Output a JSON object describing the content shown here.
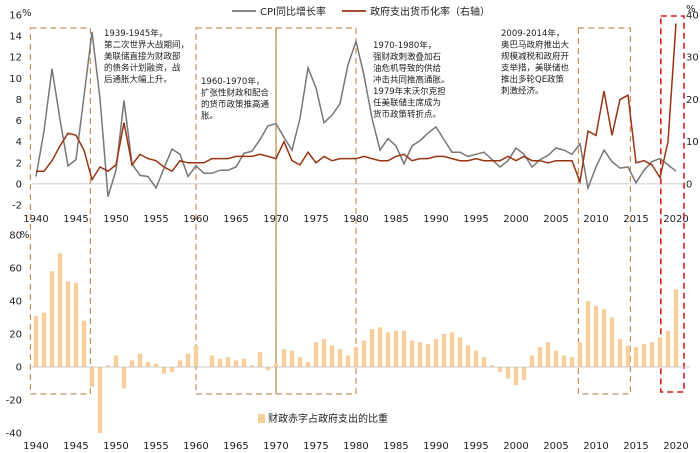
{
  "colors": {
    "cpi_line": "#777777",
    "ratio_line": "#9a3412",
    "bars": "#f8cf9a",
    "box_orange": "#c8925a",
    "box_red": "#d81e1e",
    "divider": "#c9a46a"
  },
  "chart_data": [
    {
      "type": "line",
      "x_start": 1940,
      "x_end": 2021,
      "x_ticks": [
        1940,
        1945,
        1950,
        1955,
        1960,
        1965,
        1970,
        1975,
        1980,
        1985,
        1990,
        1995,
        2000,
        2005,
        2010,
        2015,
        2020
      ],
      "x_tick_labels": [
        "1940",
        "1945",
        "1950",
        "1955",
        "1960",
        "1965",
        "1970",
        "1975",
        "1980",
        "1985",
        "1990",
        "1995",
        "2000",
        "2005",
        "2010",
        "2015",
        "2020"
      ],
      "y_left": {
        "unit": "%",
        "min": -2,
        "max": 16,
        "ticks": [
          -2,
          0,
          2,
          4,
          6,
          8,
          10,
          12,
          14,
          16
        ],
        "tick_labels": [
          "-2",
          "0",
          "2",
          "4",
          "6",
          "8",
          "10",
          "12",
          "14",
          "16"
        ]
      },
      "y_right": {
        "unit": "%",
        "min": -5,
        "max": 40,
        "ticks": [
          0,
          10,
          20,
          30,
          40
        ],
        "tick_labels": [
          "0",
          "10",
          "20",
          "30",
          "40"
        ]
      },
      "legend_position": "top-center",
      "series": [
        {
          "name": "CPI同比增长率",
          "axis": "left",
          "years": [
            1940,
            1941,
            1942,
            1943,
            1944,
            1945,
            1946,
            1947,
            1948,
            1949,
            1950,
            1951,
            1952,
            1953,
            1954,
            1955,
            1956,
            1957,
            1958,
            1959,
            1960,
            1961,
            1962,
            1963,
            1964,
            1965,
            1966,
            1967,
            1968,
            1969,
            1970,
            1971,
            1972,
            1973,
            1974,
            1975,
            1976,
            1977,
            1978,
            1979,
            1980,
            1981,
            1982,
            1983,
            1984,
            1985,
            1986,
            1987,
            1988,
            1989,
            1990,
            1991,
            1992,
            1993,
            1994,
            1995,
            1996,
            1997,
            1998,
            1999,
            2000,
            2001,
            2002,
            2003,
            2004,
            2005,
            2006,
            2007,
            2008,
            2009,
            2010,
            2011,
            2012,
            2013,
            2014,
            2015,
            2016,
            2017,
            2018,
            2019,
            2020
          ],
          "values": [
            0.7,
            5.0,
            10.9,
            6.1,
            1.7,
            2.3,
            8.3,
            14.4,
            8.1,
            -1.2,
            1.3,
            7.9,
            1.9,
            0.8,
            0.7,
            -0.4,
            1.5,
            3.3,
            2.8,
            0.7,
            1.7,
            1.0,
            1.0,
            1.3,
            1.3,
            1.6,
            2.9,
            3.1,
            4.2,
            5.5,
            5.7,
            4.4,
            3.2,
            6.2,
            11.0,
            9.1,
            5.8,
            6.5,
            7.6,
            11.3,
            13.5,
            10.3,
            6.2,
            3.2,
            4.3,
            3.6,
            1.9,
            3.6,
            4.1,
            4.8,
            5.4,
            4.2,
            3.0,
            3.0,
            2.6,
            2.8,
            3.0,
            2.3,
            1.6,
            2.2,
            3.4,
            2.8,
            1.6,
            2.3,
            2.7,
            3.4,
            3.2,
            2.8,
            3.8,
            -0.4,
            1.6,
            3.2,
            2.1,
            1.5,
            1.6,
            0.1,
            1.3,
            2.1,
            2.4,
            1.8,
            1.2
          ]
        },
        {
          "name": "政府支出货币化率（右轴）",
          "axis": "right",
          "years": [
            1940,
            1941,
            1942,
            1943,
            1944,
            1945,
            1946,
            1947,
            1948,
            1949,
            1950,
            1951,
            1952,
            1953,
            1954,
            1955,
            1956,
            1957,
            1958,
            1959,
            1960,
            1961,
            1962,
            1963,
            1964,
            1965,
            1966,
            1967,
            1968,
            1969,
            1970,
            1971,
            1972,
            1973,
            1974,
            1975,
            1976,
            1977,
            1978,
            1979,
            1980,
            1981,
            1982,
            1983,
            1984,
            1985,
            1986,
            1987,
            1988,
            1989,
            1990,
            1991,
            1992,
            1993,
            1994,
            1995,
            1996,
            1997,
            1998,
            1999,
            2000,
            2001,
            2002,
            2003,
            2004,
            2005,
            2006,
            2007,
            2008,
            2009,
            2010,
            2011,
            2012,
            2013,
            2014,
            2015,
            2016,
            2017,
            2018,
            2019,
            2020
          ],
          "values": [
            3.0,
            3.0,
            5.5,
            9.0,
            12.0,
            11.5,
            8.0,
            1.0,
            4.0,
            3.0,
            4.5,
            14.5,
            4.5,
            7.0,
            6.0,
            5.5,
            4.0,
            3.0,
            5.5,
            5.0,
            5.0,
            5.0,
            6.0,
            6.0,
            6.0,
            6.5,
            6.5,
            6.5,
            7.0,
            6.5,
            6.0,
            10.0,
            5.5,
            4.5,
            7.5,
            5.0,
            6.5,
            5.5,
            6.0,
            6.0,
            6.0,
            6.5,
            6.0,
            5.5,
            5.5,
            6.5,
            7.0,
            5.5,
            6.0,
            6.0,
            6.5,
            6.5,
            6.0,
            5.5,
            5.5,
            6.0,
            5.5,
            5.5,
            5.5,
            6.5,
            5.5,
            6.5,
            5.5,
            5.5,
            5.0,
            5.5,
            5.5,
            5.5,
            0.5,
            12.5,
            11.5,
            22.0,
            11.5,
            20.0,
            21.0,
            5.0,
            5.5,
            4.5,
            1.5,
            10.0,
            38.0
          ]
        }
      ],
      "annotations": [
        {
          "id": "ww2",
          "lines": [
            "1939-1945年，",
            "第二次世界大战期间，",
            "美联储直接为财政部",
            "的债务计划融资，战",
            "后通胀大幅上升。"
          ]
        },
        {
          "id": "sixties",
          "lines": [
            "1960-1970年，",
            "扩张性财政和配合",
            "的货币政策推高通",
            "胀。"
          ]
        },
        {
          "id": "seventies",
          "lines": [
            "1970-1980年，",
            "强财政刺激叠加石",
            "油危机导致的供给",
            "冲击共同推高通胀。",
            "1979年末沃尔克担",
            "任美联储主席成为",
            "货币政策转折点。"
          ]
        },
        {
          "id": "obama",
          "lines": [
            "2009-2014年，",
            "奥巴马政府推出大",
            "规模减税和政府开",
            "支举措，美联储也",
            "推出多轮QE政策",
            "刺激经济。"
          ]
        }
      ]
    },
    {
      "type": "bar",
      "x_ticks": [
        1940,
        1945,
        1950,
        1955,
        1960,
        1965,
        1970,
        1975,
        1980,
        1985,
        1990,
        1995,
        2000,
        2005,
        2010,
        2015,
        2020
      ],
      "x_tick_labels": [
        "1940",
        "1945",
        "1950",
        "1955",
        "1960",
        "1965",
        "1970",
        "1975",
        "1980",
        "1985",
        "1990",
        "1995",
        "2000",
        "2005",
        "2010",
        "2015",
        "2020"
      ],
      "y": {
        "unit": "%",
        "min": -40,
        "max": 80,
        "ticks": [
          -40,
          -20,
          0,
          20,
          40,
          60,
          80
        ],
        "tick_labels": [
          "-40",
          "-20",
          "0",
          "20",
          "40",
          "60",
          "80"
        ]
      },
      "legend_position": "bottom-left",
      "series": [
        {
          "name": "财政赤字占政府支出的比重",
          "years": [
            1940,
            1941,
            1942,
            1943,
            1944,
            1945,
            1946,
            1947,
            1948,
            1949,
            1950,
            1951,
            1952,
            1953,
            1954,
            1955,
            1956,
            1957,
            1958,
            1959,
            1960,
            1961,
            1962,
            1963,
            1964,
            1965,
            1966,
            1967,
            1968,
            1969,
            1970,
            1971,
            1972,
            1973,
            1974,
            1975,
            1976,
            1977,
            1978,
            1979,
            1980,
            1981,
            1982,
            1983,
            1984,
            1985,
            1986,
            1987,
            1988,
            1989,
            1990,
            1991,
            1992,
            1993,
            1994,
            1995,
            1996,
            1997,
            1998,
            1999,
            2000,
            2001,
            2002,
            2003,
            2004,
            2005,
            2006,
            2007,
            2008,
            2009,
            2010,
            2011,
            2012,
            2013,
            2014,
            2015,
            2016,
            2017,
            2018,
            2019,
            2020
          ],
          "values": [
            31,
            33,
            58,
            69,
            52,
            51,
            28,
            -12,
            -40,
            1,
            7,
            -13,
            4,
            8,
            3,
            2,
            -4,
            -3,
            4,
            8,
            13,
            0,
            7,
            5,
            6,
            4,
            5,
            1,
            9,
            -2,
            2,
            11,
            10,
            6,
            3,
            15,
            17,
            13,
            11,
            7,
            12,
            16,
            23,
            24,
            21,
            22,
            22,
            16,
            15,
            14,
            17,
            20,
            21,
            18,
            13,
            10,
            6,
            1,
            -3,
            -7,
            -11,
            -8,
            7,
            12,
            15,
            10,
            7,
            6,
            15,
            40,
            37,
            35,
            30,
            17,
            13,
            12,
            14,
            15,
            18,
            22,
            47
          ]
        }
      ]
    }
  ]
}
